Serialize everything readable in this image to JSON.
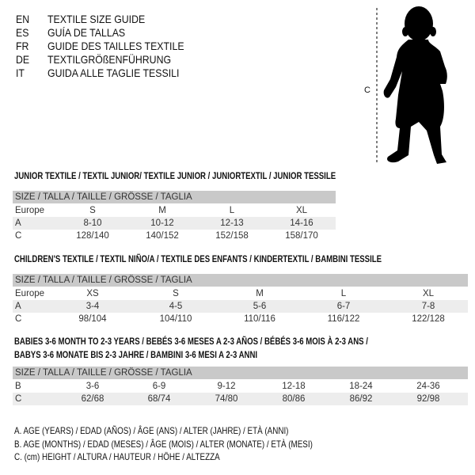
{
  "languages": [
    {
      "code": "EN",
      "text": "TEXTILE SIZE GUIDE"
    },
    {
      "code": "ES",
      "text": "GUÍA DE TALLAS"
    },
    {
      "code": "FR",
      "text": "GUIDE DES TAILLES TEXTILE"
    },
    {
      "code": "DE",
      "text": "TEXTILGRÖßENFÜHRUNG"
    },
    {
      "code": "IT",
      "text": "GUIDA ALLE TAGLIE TESSILI"
    }
  ],
  "figure": {
    "measure_label": "C",
    "icon": "child-silhouette"
  },
  "size_header": "SIZE / TALLA / TAILLE / GRÖSSE / TAGLIA",
  "junior": {
    "title": "JUNIOR TEXTILE / TEXTIL JUNIOR/ TEXTILE JUNIOR / JUNIORTEXTIL / JUNIOR TESSILE",
    "rows": [
      {
        "label": "Europe",
        "values": [
          "S",
          "M",
          "L",
          "XL"
        ]
      },
      {
        "label": "A",
        "values": [
          "8-10",
          "10-12",
          "12-13",
          "14-16"
        ]
      },
      {
        "label": "C",
        "values": [
          "128/140",
          "140/152",
          "152/158",
          "158/170"
        ]
      }
    ]
  },
  "children": {
    "title": "CHILDREN'S TEXTILE / TEXTIL NIÑO/A / TEXTILE DES ENFANTS / KINDERTEXTIL / BAMBINI TESSILE",
    "rows": [
      {
        "label": "Europe",
        "values": [
          "XS",
          "S",
          "M",
          "L",
          "XL"
        ]
      },
      {
        "label": "A",
        "values": [
          "3-4",
          "4-5",
          "5-6",
          "6-7",
          "7-8"
        ]
      },
      {
        "label": "C",
        "values": [
          "98/104",
          "104/110",
          "110/116",
          "116/122",
          "122/128"
        ]
      }
    ]
  },
  "babies": {
    "title_line1": "BABIES 3-6 MONTH TO 2-3 YEARS / BEBÉS 3-6 MESES A 2-3 AÑOS / BÉBÉS 3-6 MOIS À 2-3 ANS /",
    "title_line2": "BABYS 3-6 MONATE BIS 2-3 JAHRE / BAMBINI 3-6 MESI A 2-3 ANNI",
    "rows": [
      {
        "label": "B",
        "values": [
          "3-6",
          "6-9",
          "9-12",
          "12-18",
          "18-24",
          "24-36"
        ]
      },
      {
        "label": "C",
        "values": [
          "62/68",
          "68/74",
          "74/80",
          "80/86",
          "86/92",
          "92/98"
        ]
      }
    ]
  },
  "legend": [
    "A. AGE (YEARS) / EDAD (AÑOS) / ÂGE (ANS) / ALTER (JAHRE) / ETÀ (ANNI)",
    "B. AGE (MONTHS) / EDAD (MESES) / ÂGE (MOIS) / ALTER (MONATE) / ETÀ (MESI)",
    "C. (cm) HEIGHT / ALTURA / HAUTEUR / HÖHE / ALTEZZA"
  ]
}
